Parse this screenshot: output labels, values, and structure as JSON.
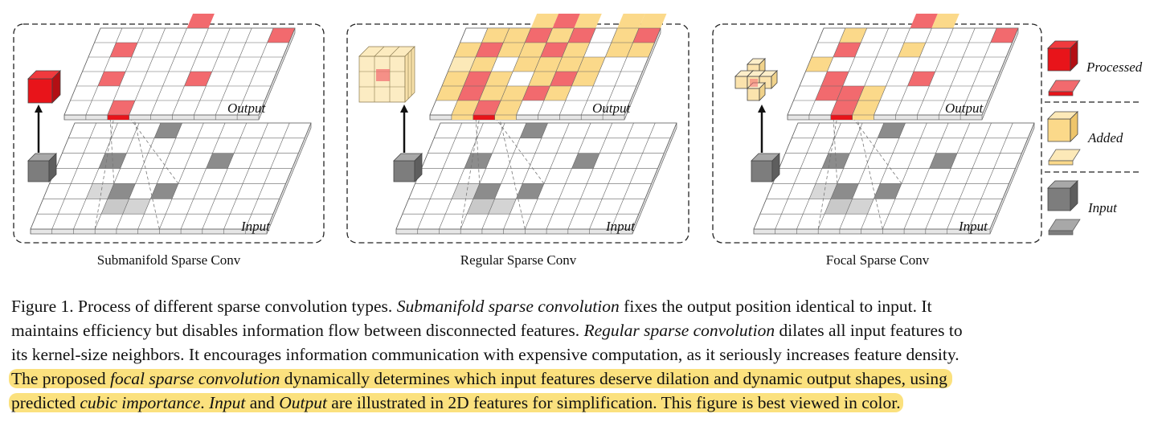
{
  "panels": [
    {
      "id": "submanifold",
      "title": "Submanifold Sparse Conv",
      "output_label": "Output",
      "input_label": "Input"
    },
    {
      "id": "regular",
      "title": "Regular Sparse Conv",
      "output_label": "Output",
      "input_label": "Input"
    },
    {
      "id": "focal",
      "title": "Focal Sparse Conv",
      "output_label": "Output",
      "input_label": "Input"
    }
  ],
  "legend": {
    "processed": "Processed",
    "added": "Added",
    "input": "Input"
  },
  "colors": {
    "processed": "#e8141a",
    "processed_light": "#f26a6e",
    "added": "#fbd98a",
    "added_light": "#fce9b8",
    "input": "#8c8c8c",
    "grid_line": "#666666",
    "highlight": "#fbe17e"
  },
  "caption": {
    "l1_a": "Figure 1.  Process of different sparse convolution types. ",
    "l1_b": "Submanifold sparse convolution",
    "l1_c": " fixes the output position identical to input.  It",
    "l2_a": "maintains efficiency but disables information flow between disconnected features. ",
    "l2_b": "Regular sparse convolution",
    "l2_c": " dilates all input features to",
    "l3": "its kernel-size neighbors.  It encourages information communication with expensive computation, as it seriously increases feature density.",
    "l4_a": "The proposed ",
    "l4_b": "focal sparse convolution",
    "l4_c": " dynamically determines which input features deserve dilation and dynamic output shapes, using",
    "l5_a": "predicted ",
    "l5_b": "cubic importance",
    "l5_c": ". ",
    "l5_d": "Input",
    "l5_e": " and ",
    "l5_f": "Output",
    "l5_g": " are illustrated in 2D features for simplification. This figure is best viewed in color."
  }
}
